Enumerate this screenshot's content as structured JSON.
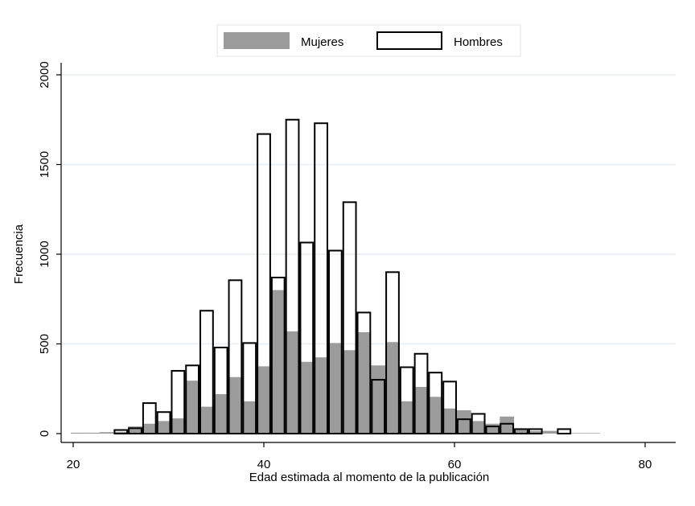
{
  "chart_data": {
    "type": "bar",
    "xlabel": "Edad estimada al momento de la publicación",
    "ylabel": "Frecuencia",
    "xlim": [
      19,
      84
    ],
    "ylim": [
      0,
      2100
    ],
    "xticks": [
      20,
      40,
      60,
      80
    ],
    "yticks": [
      0,
      500,
      1000,
      1500,
      2000
    ],
    "grid": true,
    "legend_position": "top",
    "bin_width": 1.5,
    "series": [
      {
        "name": "Mujeres",
        "color": "#9b9b9b",
        "style": "filled",
        "bins": [
          [
            20.5,
            5
          ],
          [
            22.0,
            5
          ],
          [
            23.5,
            8
          ],
          [
            25.0,
            10
          ],
          [
            26.5,
            40
          ],
          [
            28.0,
            55
          ],
          [
            29.5,
            70
          ],
          [
            31.0,
            85
          ],
          [
            32.5,
            295
          ],
          [
            34.0,
            150
          ],
          [
            35.5,
            220
          ],
          [
            37.0,
            315
          ],
          [
            38.5,
            180
          ],
          [
            40.0,
            375
          ],
          [
            41.5,
            800
          ],
          [
            43.0,
            570
          ],
          [
            44.5,
            400
          ],
          [
            46.0,
            425
          ],
          [
            47.5,
            505
          ],
          [
            49.0,
            465
          ],
          [
            50.5,
            565
          ],
          [
            52.0,
            380
          ],
          [
            53.5,
            510
          ],
          [
            55.0,
            180
          ],
          [
            56.5,
            260
          ],
          [
            58.0,
            205
          ],
          [
            59.5,
            140
          ],
          [
            61.0,
            130
          ],
          [
            62.5,
            70
          ],
          [
            64.0,
            55
          ],
          [
            65.5,
            95
          ],
          [
            67.0,
            20
          ],
          [
            68.5,
            15
          ],
          [
            70.0,
            15
          ],
          [
            71.5,
            5
          ],
          [
            73.0,
            3
          ],
          [
            74.5,
            3
          ]
        ]
      },
      {
        "name": "Hombres",
        "color": "#000000",
        "style": "outline",
        "bins": [
          [
            20.5,
            0
          ],
          [
            22.0,
            0
          ],
          [
            23.5,
            0
          ],
          [
            25.0,
            20
          ],
          [
            26.5,
            30
          ],
          [
            28.0,
            170
          ],
          [
            29.5,
            120
          ],
          [
            31.0,
            350
          ],
          [
            32.5,
            380
          ],
          [
            34.0,
            685
          ],
          [
            35.5,
            480
          ],
          [
            37.0,
            855
          ],
          [
            38.5,
            505
          ],
          [
            40.0,
            1670
          ],
          [
            41.5,
            870
          ],
          [
            43.0,
            1750
          ],
          [
            44.5,
            1065
          ],
          [
            46.0,
            1730
          ],
          [
            47.5,
            1020
          ],
          [
            49.0,
            1290
          ],
          [
            50.5,
            675
          ],
          [
            52.0,
            300
          ],
          [
            53.5,
            900
          ],
          [
            55.0,
            370
          ],
          [
            56.5,
            445
          ],
          [
            58.0,
            340
          ],
          [
            59.5,
            290
          ],
          [
            61.0,
            80
          ],
          [
            62.5,
            110
          ],
          [
            64.0,
            40
          ],
          [
            65.5,
            55
          ],
          [
            67.0,
            25
          ],
          [
            68.5,
            25
          ],
          [
            70.0,
            0
          ],
          [
            71.5,
            25
          ],
          [
            73.0,
            0
          ],
          [
            74.5,
            0
          ],
          [
            76.0,
            0
          ],
          [
            77.5,
            0
          ],
          [
            79.0,
            0
          ],
          [
            80.5,
            0
          ],
          [
            82.0,
            0
          ]
        ]
      }
    ]
  }
}
